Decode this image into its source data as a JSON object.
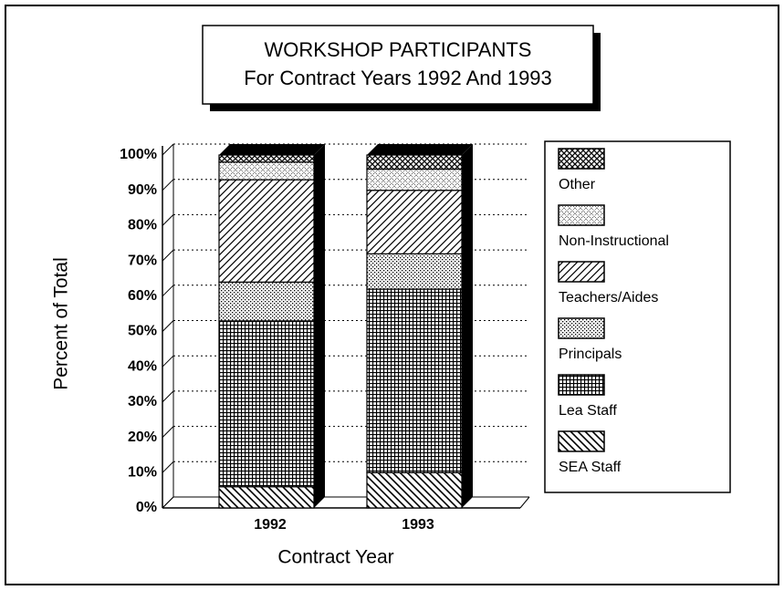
{
  "chart_data": {
    "type": "stacked_bar",
    "title": "WORKSHOP PARTICIPANTS",
    "subtitle": "For Contract Years 1992 And 1993",
    "x_label": "Contract Year",
    "y_label": "Percent of Total",
    "categories": [
      "1992",
      "1993"
    ],
    "series": [
      {
        "name": "SEA Staff",
        "color": "#000000",
        "pattern": "diagonal-back",
        "values": [
          6,
          10
        ]
      },
      {
        "name": "Lea Staff",
        "color": "#000000",
        "pattern": "grid",
        "values": [
          47,
          52
        ]
      },
      {
        "name": "Principals",
        "color": "#000000",
        "pattern": "dots",
        "values": [
          11,
          10
        ]
      },
      {
        "name": "Teachers/Aides",
        "color": "#000000",
        "pattern": "diagonal",
        "values": [
          29,
          18
        ]
      },
      {
        "name": "Non-Instructional",
        "color": "#000000",
        "pattern": "sparse-cross",
        "values": [
          5,
          6
        ]
      },
      {
        "name": "Other",
        "color": "#000000",
        "pattern": "crosshatch",
        "values": [
          2,
          4
        ]
      }
    ],
    "ylim": [
      0,
      100
    ],
    "yticks": [
      {
        "value": 0,
        "label": "0%"
      },
      {
        "value": 10,
        "label": "10%"
      },
      {
        "value": 20,
        "label": "20%"
      },
      {
        "value": 30,
        "label": "30%"
      },
      {
        "value": 40,
        "label": "40%"
      },
      {
        "value": 50,
        "label": "50%"
      },
      {
        "value": 60,
        "label": "60%"
      },
      {
        "value": 70,
        "label": "70%"
      },
      {
        "value": 80,
        "label": "80%"
      },
      {
        "value": 90,
        "label": "90%"
      },
      {
        "value": 100,
        "label": "100%"
      }
    ],
    "grid": true,
    "legend": "right"
  }
}
